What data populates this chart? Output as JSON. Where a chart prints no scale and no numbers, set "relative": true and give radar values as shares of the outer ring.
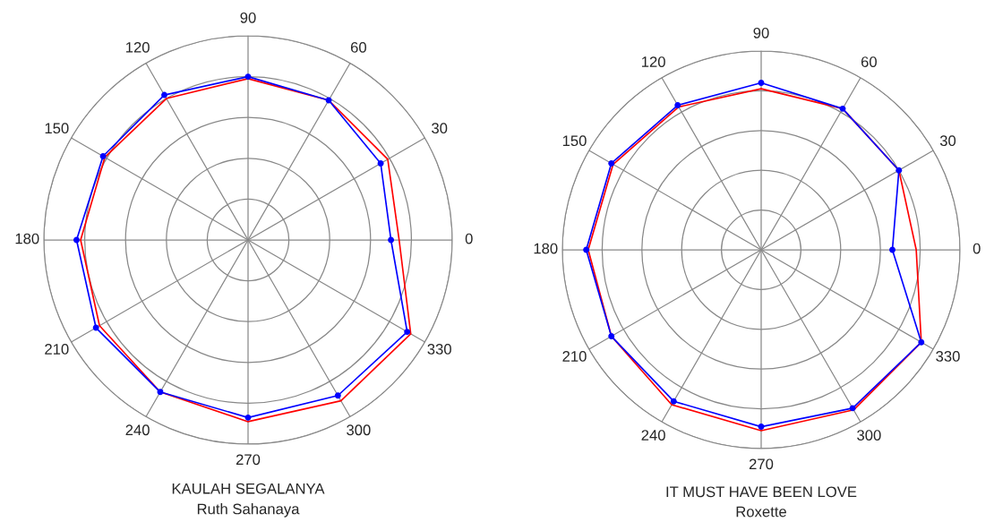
{
  "chart_data": [
    {
      "type": "radar",
      "title": "KAULAH SEGALANYA",
      "subtitle": "Ruth Sahanaya",
      "relative": true,
      "grid": true,
      "categories": [
        "90",
        "60",
        "30",
        "0",
        "330",
        "300",
        "270",
        "240",
        "210",
        "180",
        "150",
        "120"
      ],
      "series": [
        {
          "color": "#ff0000",
          "marker": "none",
          "values": [
            0.79,
            0.79,
            0.79,
            0.74,
            0.92,
            0.91,
            0.89,
            0.86,
            0.84,
            0.82,
            0.81,
            0.8
          ]
        },
        {
          "color": "#0000ff",
          "marker": "circle",
          "values": [
            0.8,
            0.79,
            0.75,
            0.7,
            0.9,
            0.88,
            0.87,
            0.86,
            0.86,
            0.84,
            0.82,
            0.82
          ]
        }
      ]
    },
    {
      "type": "radar",
      "title": "IT MUST HAVE BEEN LOVE",
      "subtitle": "Roxette",
      "relative": true,
      "grid": true,
      "categories": [
        "90",
        "60",
        "30",
        "0",
        "330",
        "300",
        "270",
        "240",
        "210",
        "180",
        "150",
        "120"
      ],
      "series": [
        {
          "color": "#ff0000",
          "marker": "none",
          "values": [
            0.81,
            0.82,
            0.8,
            0.78,
            0.93,
            0.93,
            0.91,
            0.9,
            0.87,
            0.87,
            0.86,
            0.83
          ]
        },
        {
          "color": "#0000ff",
          "marker": "circle",
          "values": [
            0.84,
            0.82,
            0.8,
            0.66,
            0.93,
            0.92,
            0.89,
            0.88,
            0.87,
            0.88,
            0.87,
            0.84
          ]
        }
      ]
    }
  ]
}
